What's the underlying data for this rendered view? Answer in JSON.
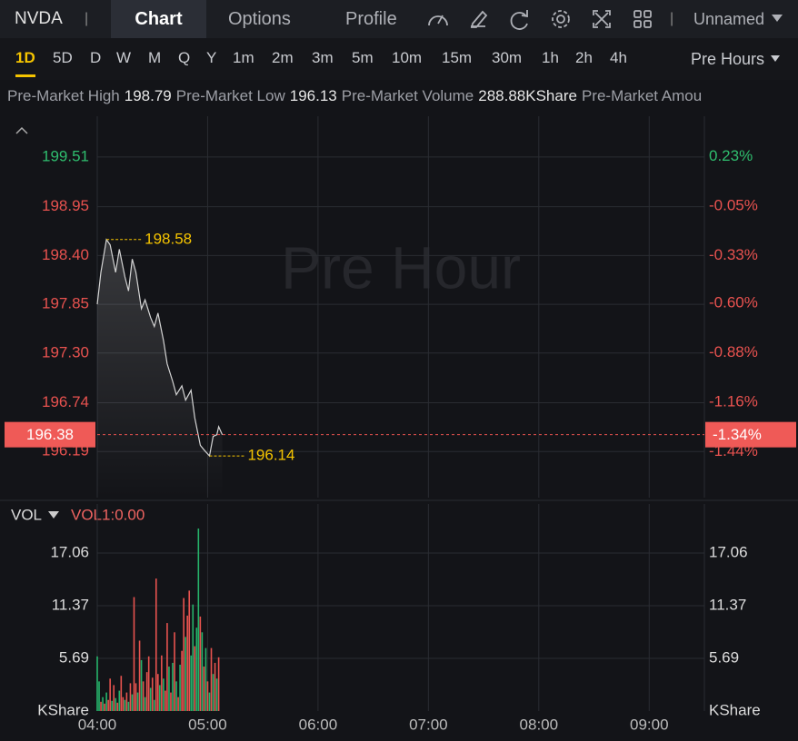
{
  "header": {
    "symbol": "NVDA",
    "separator": "|",
    "tabs": [
      "Chart",
      "Options",
      "Profile"
    ],
    "active_tab": 0,
    "layout_name": "Unnamed"
  },
  "timeframes": {
    "items": [
      "1D",
      "5D",
      "D",
      "W",
      "M",
      "Q",
      "Y",
      "1m",
      "2m",
      "3m",
      "5m",
      "10m",
      "15m",
      "30m",
      "1h",
      "2h",
      "4h"
    ],
    "active": 0,
    "session": "Pre Hours"
  },
  "stats": [
    {
      "label": "Pre-Market High",
      "value": "198.79"
    },
    {
      "label": "Pre-Market Low",
      "value": "196.13"
    },
    {
      "label": "Pre-Market Volume",
      "value": "288.88KShare"
    },
    {
      "label": "Pre-Market Amou"
    }
  ],
  "chart_data": [
    {
      "type": "line",
      "watermark": "Pre Hour",
      "color": "#d4d4d4",
      "up_color": "#2fbd6e",
      "down_color": "#e8524f",
      "grid": true,
      "x": [
        "04:00",
        "04:02",
        "04:05",
        "04:07",
        "04:10",
        "04:12",
        "04:15",
        "04:17",
        "04:19",
        "04:21",
        "04:24",
        "04:26",
        "04:29",
        "04:31",
        "04:33",
        "04:36",
        "04:38",
        "04:41",
        "04:43",
        "04:46",
        "04:48",
        "04:51",
        "04:53",
        "04:56",
        "04:58",
        "05:01",
        "05:03",
        "05:05",
        "05:06",
        "05:08"
      ],
      "values": [
        197.85,
        198.21,
        198.58,
        198.52,
        198.21,
        198.47,
        198.16,
        198.0,
        198.36,
        198.21,
        197.8,
        197.9,
        197.7,
        197.6,
        197.75,
        197.44,
        197.18,
        196.98,
        196.83,
        196.93,
        196.77,
        196.88,
        196.57,
        196.26,
        196.21,
        196.14,
        196.36,
        196.38,
        196.47,
        196.38
      ],
      "xlim": [
        "04:00",
        "09:30"
      ],
      "xticks": [
        "04:00",
        "05:00",
        "06:00",
        "07:00",
        "08:00",
        "09:00"
      ],
      "ylim": [
        195.67,
        199.97
      ],
      "yticks": [
        199.51,
        198.95,
        {
          "value": 198.4,
          "label": "198.40"
        },
        197.85,
        {
          "value": 197.3,
          "label": "197.30"
        },
        196.74,
        196.19
      ],
      "y2lim": [
        -1.7,
        0.46
      ],
      "y2ticks": [
        {
          "value": 0.23,
          "label": "0.23%"
        },
        {
          "value": -0.05,
          "label": "-0.05%"
        },
        {
          "value": -0.33,
          "label": "-0.33%"
        },
        {
          "value": -0.6,
          "label": "-0.60%"
        },
        {
          "value": -0.88,
          "label": "-0.88%"
        },
        {
          "value": -1.16,
          "label": "-1.16%"
        },
        {
          "value": -1.44,
          "label": "-1.44%"
        }
      ],
      "high": {
        "x": "04:05",
        "value": 198.58
      },
      "low": {
        "x": "05:01",
        "value": 196.14
      },
      "last": {
        "value": 196.38,
        "change": {
          "value": -1.34,
          "label": "-1.34%"
        }
      }
    },
    {
      "type": "bar",
      "title": "VOL",
      "indicator": "VOL1:0.00",
      "unit": "KShare",
      "grid": true,
      "x": [
        "04:00",
        "04:01",
        "04:02",
        "04:03",
        "04:04",
        "04:05",
        "04:06",
        "04:07",
        "04:08",
        "04:09",
        "04:10",
        "04:11",
        "04:12",
        "04:13",
        "04:14",
        "04:15",
        "04:16",
        "04:17",
        "04:18",
        "04:19",
        "04:20",
        "04:21",
        "04:22",
        "04:23",
        "04:24",
        "04:25",
        "04:26",
        "04:27",
        "04:28",
        "04:29",
        "04:30",
        "04:31",
        "04:32",
        "04:33",
        "04:34",
        "04:35",
        "04:36",
        "04:37",
        "04:38",
        "04:39",
        "04:40",
        "04:41",
        "04:42",
        "04:43",
        "04:44",
        "04:45",
        "04:46",
        "04:47",
        "04:48",
        "04:49",
        "04:50",
        "04:51",
        "04:52",
        "04:53",
        "04:54",
        "04:55",
        "04:56",
        "04:57",
        "04:58",
        "04:59",
        "05:00",
        "05:01",
        "05:02",
        "05:03",
        "05:04",
        "05:05",
        "05:06"
      ],
      "values": [
        5.9,
        3.2,
        1.0,
        1.5,
        0.8,
        2.0,
        1.2,
        3.5,
        1.1,
        2.8,
        1.4,
        0.9,
        2.2,
        3.8,
        1.5,
        1.2,
        2.0,
        1.0,
        3.0,
        1.8,
        12.3,
        3.0,
        2.0,
        7.6,
        5.5,
        3.2,
        1.5,
        4.2,
        5.9,
        2.5,
        3.6,
        1.2,
        14.3,
        4.0,
        2.8,
        6.0,
        3.5,
        2.2,
        9.5,
        4.8,
        2.0,
        5.2,
        8.5,
        3.2,
        1.5,
        5.0,
        6.5,
        12.2,
        8.0,
        10.3,
        13.0,
        6.0,
        11.5,
        7.0,
        9.0,
        19.7,
        10.2,
        8.5,
        4.8,
        6.8,
        3.2,
        2.0,
        6.8,
        4.0,
        5.2,
        3.5,
        5.8
      ],
      "colors": [
        "#26b36b",
        "#26b36b",
        "#e8534f",
        "#26b36b",
        "#e8534f",
        "#26b36b",
        "#e8534f",
        "#e8534f",
        "#26b36b",
        "#e8534f",
        "#26b36b",
        "#e8534f",
        "#26b36b",
        "#e8534f",
        "#e8534f",
        "#26b36b",
        "#e8534f",
        "#26b36b",
        "#e8534f",
        "#26b36b",
        "#e8534f",
        "#e8534f",
        "#26b36b",
        "#e8534f",
        "#26b36b",
        "#e8534f",
        "#26b36b",
        "#e8534f",
        "#e8534f",
        "#26b36b",
        "#e8534f",
        "#26b36b",
        "#e8534f",
        "#e8534f",
        "#26b36b",
        "#e8534f",
        "#26b36b",
        "#e8534f",
        "#e8534f",
        "#26b36b",
        "#e8534f",
        "#26b36b",
        "#e8534f",
        "#26b36b",
        "#e8534f",
        "#26b36b",
        "#e8534f",
        "#e8534f",
        "#26b36b",
        "#e8534f",
        "#e8534f",
        "#26b36b",
        "#26b36b",
        "#e8534f",
        "#26b36b",
        "#26b36b",
        "#e8534f",
        "#26b36b",
        "#e8534f",
        "#26b36b",
        "#e8534f",
        "#26b36b",
        "#e8534f",
        "#26b36b",
        "#e8534f",
        "#26b36b",
        "#e8534f"
      ],
      "xlim": [
        "04:00",
        "09:30"
      ],
      "xticks": [
        "04:00",
        "05:00",
        "06:00",
        "07:00",
        "08:00",
        "09:00"
      ],
      "ylim": [
        0,
        22.35
      ],
      "yticks": [
        5.69,
        11.37,
        17.06
      ]
    }
  ]
}
